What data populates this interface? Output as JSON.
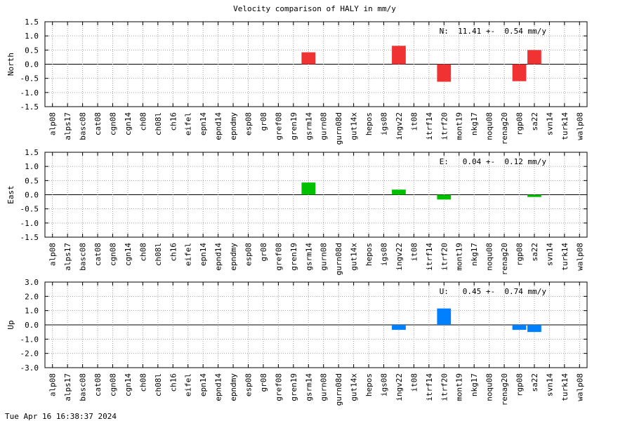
{
  "title": "Velocity comparison of HALY in mm/y",
  "timestamp": "Tue Apr 16 16:38:37 2024",
  "chart_data": [
    {
      "type": "bar",
      "ylabel": "North",
      "annotation": "N:  11.41 +-  0.54 mm/y",
      "color": "#f03232",
      "ylim": [
        -1.5,
        1.5
      ],
      "yticks": [
        "1.5",
        "1.0",
        "0.5",
        "0.0",
        "-0.5",
        "-1.0",
        "-1.5"
      ],
      "grid": true,
      "categories": [
        "alp08",
        "alps17",
        "basc08",
        "cat08",
        "cgn08",
        "cgn14",
        "ch08",
        "ch08l",
        "ch16",
        "eifel",
        "epn14",
        "epnd14",
        "epndmy",
        "esp08",
        "gr08",
        "gref08",
        "gren19",
        "gsrm14",
        "gurn08",
        "gurn08d",
        "gut14x",
        "hepos",
        "igs08",
        "ingv22",
        "it08",
        "itrf14",
        "itrf20",
        "mont19",
        "nkg17",
        "noqu08",
        "renag20",
        "rgp08",
        "sa22",
        "svn14",
        "turk14",
        "walp08"
      ],
      "values": [
        null,
        null,
        null,
        null,
        null,
        null,
        null,
        null,
        null,
        null,
        null,
        null,
        null,
        null,
        null,
        null,
        null,
        0.42,
        null,
        null,
        null,
        null,
        null,
        0.65,
        null,
        null,
        -0.62,
        null,
        null,
        null,
        null,
        -0.6,
        0.5,
        null,
        null,
        null
      ]
    },
    {
      "type": "bar",
      "ylabel": "East",
      "annotation": "E:   0.04 +-  0.12 mm/y",
      "color": "#00c000",
      "ylim": [
        -1.5,
        1.5
      ],
      "yticks": [
        "1.5",
        "1.0",
        "0.5",
        "0.0",
        "-0.5",
        "-1.0",
        "-1.5"
      ],
      "grid": true,
      "categories": [
        "alp08",
        "alps17",
        "basc08",
        "cat08",
        "cgn08",
        "cgn14",
        "ch08",
        "ch08l",
        "ch16",
        "eifel",
        "epn14",
        "epnd14",
        "epndmy",
        "esp08",
        "gr08",
        "gref08",
        "gren19",
        "gsrm14",
        "gurn08",
        "gurn08d",
        "gut14x",
        "hepos",
        "igs08",
        "ingv22",
        "it08",
        "itrf14",
        "itrf20",
        "mont19",
        "nkg17",
        "noqu08",
        "renag20",
        "rgp08",
        "sa22",
        "svn14",
        "turk14",
        "walp08"
      ],
      "values": [
        null,
        null,
        null,
        null,
        null,
        null,
        null,
        null,
        null,
        null,
        null,
        null,
        null,
        null,
        null,
        null,
        null,
        0.43,
        null,
        null,
        null,
        null,
        null,
        0.18,
        null,
        null,
        -0.17,
        null,
        null,
        null,
        null,
        null,
        -0.08,
        null,
        null,
        null
      ]
    },
    {
      "type": "bar",
      "ylabel": "Up",
      "annotation": "U:   0.45 +-  0.74 mm/y",
      "color": "#0080ff",
      "ylim": [
        -3.0,
        3.0
      ],
      "yticks": [
        "3.0",
        "2.0",
        "1.0",
        "0.0",
        "-1.0",
        "-2.0",
        "-3.0"
      ],
      "grid": true,
      "categories": [
        "alp08",
        "alps17",
        "basc08",
        "cat08",
        "cgn08",
        "cgn14",
        "ch08",
        "ch08l",
        "ch16",
        "eifel",
        "epn14",
        "epnd14",
        "epndmy",
        "esp08",
        "gr08",
        "gref08",
        "gren19",
        "gsrm14",
        "gurn08",
        "gurn08d",
        "gut14x",
        "hepos",
        "igs08",
        "ingv22",
        "it08",
        "itrf14",
        "itrf20",
        "mont19",
        "nkg17",
        "noqu08",
        "renag20",
        "rgp08",
        "sa22",
        "svn14",
        "turk14",
        "walp08"
      ],
      "values": [
        null,
        null,
        null,
        null,
        null,
        null,
        null,
        null,
        null,
        null,
        null,
        null,
        null,
        null,
        null,
        null,
        null,
        null,
        null,
        null,
        null,
        null,
        null,
        -0.35,
        null,
        null,
        1.15,
        null,
        null,
        null,
        null,
        -0.35,
        -0.5,
        null,
        null,
        null
      ]
    }
  ]
}
